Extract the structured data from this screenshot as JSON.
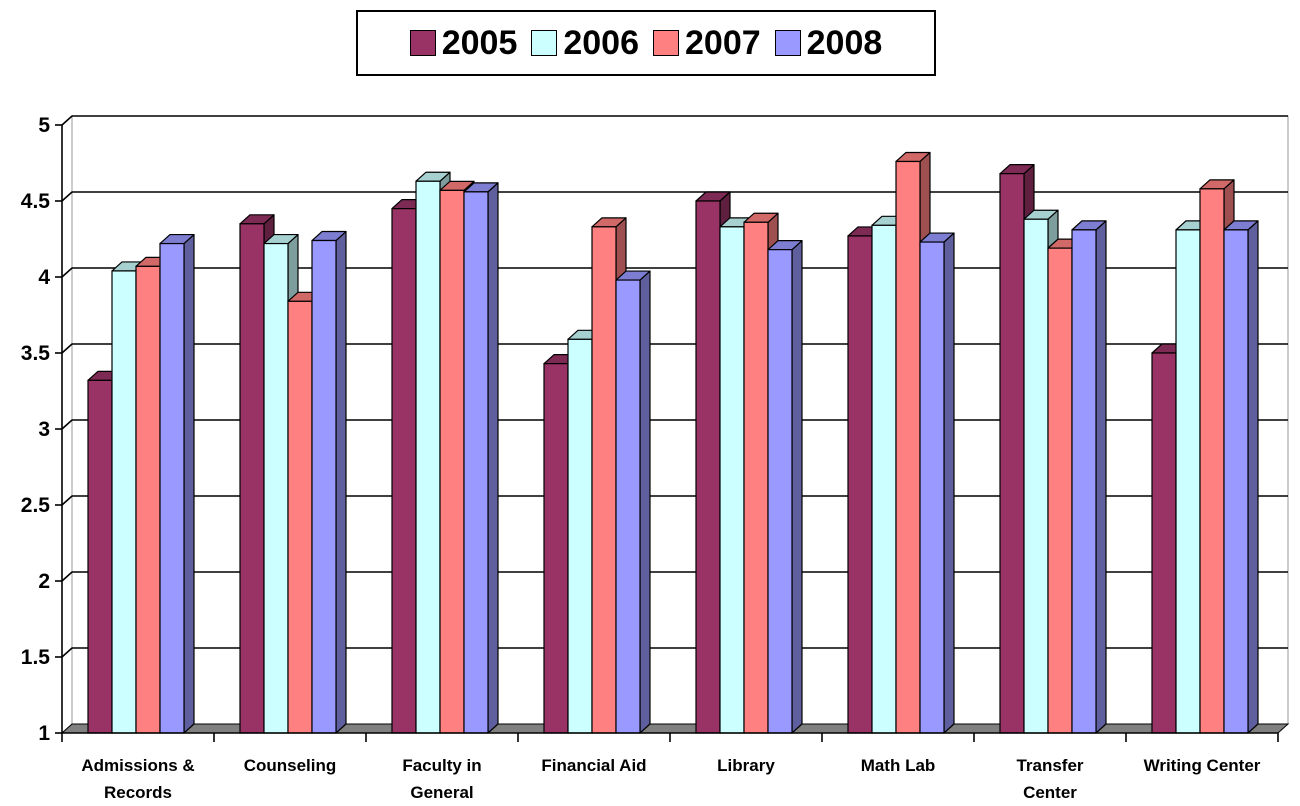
{
  "chart_data": {
    "type": "bar",
    "title": "",
    "xlabel": "",
    "ylabel": "",
    "ylim": [
      1,
      5
    ],
    "yticks": [
      "1",
      "1.5",
      "2",
      "2.5",
      "3",
      "3.5",
      "4",
      "4.5",
      "5"
    ],
    "grid": true,
    "legend_position": "top",
    "style": "3d-clustered-column",
    "categories": [
      [
        "Admissions &",
        "Records"
      ],
      [
        "Counseling"
      ],
      [
        "Faculty in",
        "General"
      ],
      [
        "Financial Aid"
      ],
      [
        "Library"
      ],
      [
        "Math Lab"
      ],
      [
        "Transfer",
        "Center"
      ],
      [
        "Writing Center"
      ]
    ],
    "series": [
      {
        "name": "2005",
        "color": "#993366",
        "values": [
          3.32,
          4.35,
          4.45,
          3.43,
          4.5,
          4.27,
          4.68,
          3.5
        ]
      },
      {
        "name": "2006",
        "color": "#ccffff",
        "values": [
          4.04,
          4.22,
          4.63,
          3.59,
          4.33,
          4.34,
          4.38,
          4.31
        ]
      },
      {
        "name": "2007",
        "color": "#ff8080",
        "values": [
          4.07,
          3.84,
          4.57,
          4.33,
          4.36,
          4.76,
          4.19,
          4.58
        ]
      },
      {
        "name": "2008",
        "color": "#9999ff",
        "values": [
          4.22,
          4.24,
          4.56,
          3.98,
          4.18,
          4.23,
          4.31,
          4.31
        ]
      }
    ]
  }
}
